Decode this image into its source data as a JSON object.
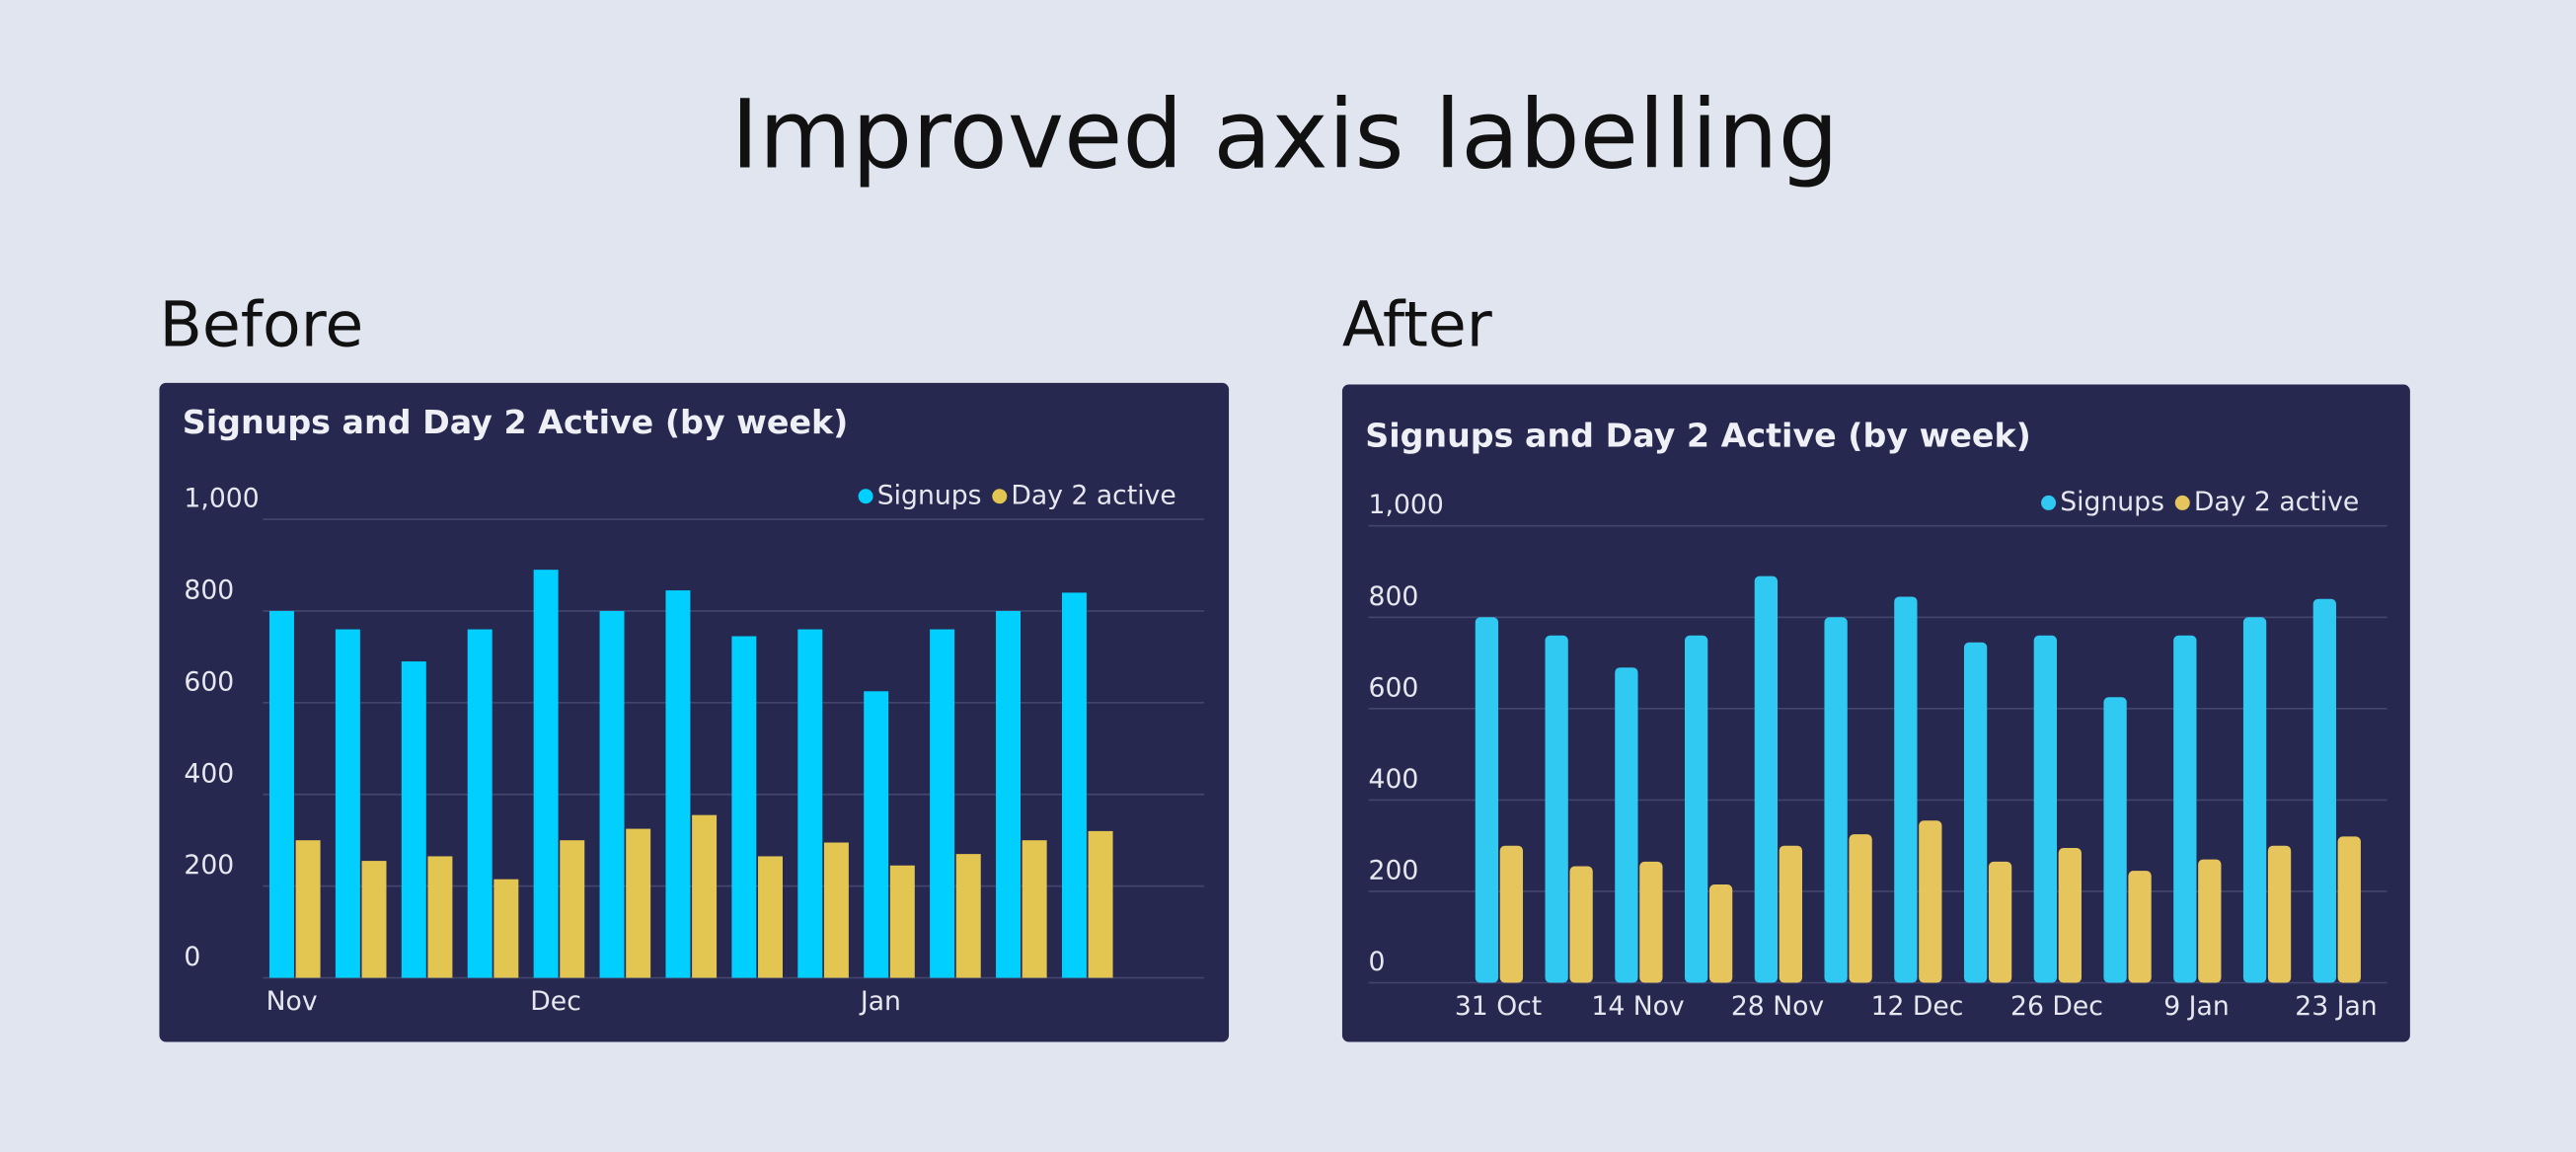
{
  "title": "Improved axis labelling",
  "panel_labels": [
    "Before",
    "After"
  ],
  "chart_data": [
    {
      "type": "bar",
      "title": "Signups and Day 2 Active (by week)",
      "categories": [
        "Nov",
        null,
        null,
        null,
        "Dec",
        null,
        null,
        null,
        null,
        "Jan",
        null,
        null,
        null
      ],
      "series": [
        {
          "name": "Signups",
          "color": "#00cfff",
          "values": [
            800,
            760,
            690,
            760,
            890,
            800,
            845,
            745,
            760,
            625,
            760,
            800,
            840
          ]
        },
        {
          "name": "Day 2 active",
          "color": "#e3c552",
          "values": [
            300,
            255,
            265,
            215,
            300,
            325,
            355,
            265,
            295,
            245,
            270,
            300,
            320
          ]
        }
      ],
      "ylim": [
        0,
        1000
      ],
      "yticks": [
        0,
        200,
        400,
        600,
        800,
        {
          "value": 1000,
          "label": "1,000"
        }
      ],
      "grid": true,
      "legend": "top-right"
    },
    {
      "type": "bar",
      "title": "Signups and Day 2 Active (by week)",
      "categories": [
        "31 Oct",
        null,
        "14 Nov",
        null,
        "28 Nov",
        null,
        "12 Dec",
        null,
        "26 Dec",
        null,
        "9 Jan",
        null,
        "23 Jan"
      ],
      "series": [
        {
          "name": "Signups",
          "color": "#2fc9f2",
          "values": [
            800,
            760,
            690,
            760,
            890,
            800,
            845,
            745,
            760,
            625,
            760,
            800,
            840
          ]
        },
        {
          "name": "Day 2 active",
          "color": "#e6c55c",
          "values": [
            300,
            255,
            265,
            215,
            300,
            325,
            355,
            265,
            295,
            245,
            270,
            300,
            320
          ]
        }
      ],
      "ylim": [
        0,
        1000
      ],
      "yticks": [
        0,
        200,
        400,
        600,
        800,
        {
          "value": 1000,
          "label": "1,000"
        }
      ],
      "grid": true,
      "legend": "top-right"
    }
  ]
}
